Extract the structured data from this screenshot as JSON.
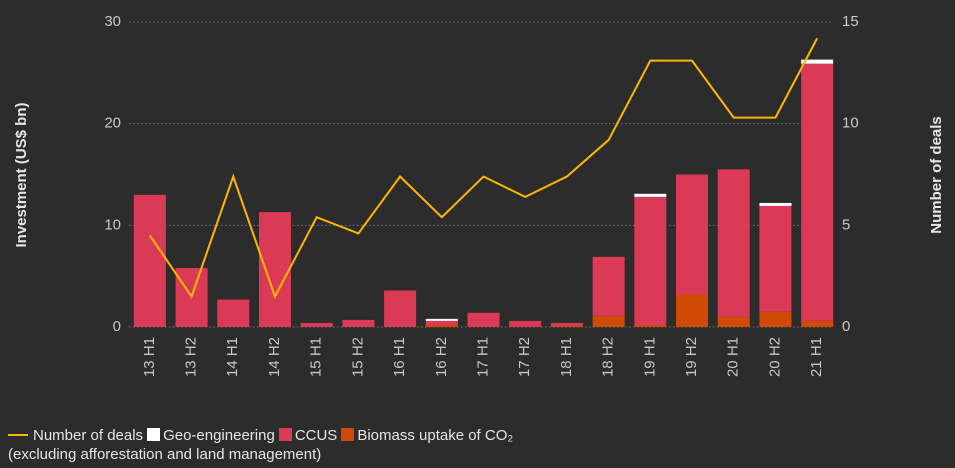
{
  "chart_data": {
    "type": "bar",
    "categories": [
      "13 H1",
      "13 H2",
      "14 H1",
      "14 H2",
      "15 H1",
      "15 H2",
      "16 H1",
      "16 H2",
      "17 H1",
      "17 H2",
      "18 H1",
      "18 H2",
      "19 H1",
      "19 H2",
      "20 H1",
      "20 H2",
      "21 H1"
    ],
    "series": [
      {
        "name": "Number of deals",
        "type": "line",
        "axis": "y2",
        "color": "#ffb600",
        "values": [
          4.5,
          1.5,
          7.4,
          1.5,
          5.4,
          4.6,
          7.4,
          5.4,
          7.4,
          6.4,
          7.4,
          9.2,
          13.1,
          13.1,
          10.3,
          10.3,
          14.2
        ]
      },
      {
        "name": "Geo-engineering",
        "color": "#ffffff",
        "values": [
          0,
          0,
          0,
          0,
          0,
          0,
          0,
          0.2,
          0,
          0,
          0,
          0,
          0.3,
          0,
          0,
          0.3,
          0.4
        ]
      },
      {
        "name": "CCUS",
        "color": "#db3a56",
        "values": [
          13,
          5.8,
          2.7,
          11.3,
          0.4,
          0.7,
          3.6,
          0.4,
          1.4,
          0.6,
          0.3,
          5.8,
          12.6,
          11.8,
          14.5,
          10.4,
          25.3
        ]
      },
      {
        "name": "Biomass uptake of CO₂",
        "color": "#d04a02",
        "values": [
          0,
          0,
          0,
          0,
          0,
          0,
          0,
          0.2,
          0,
          0,
          0.1,
          1.1,
          0.2,
          3.2,
          1.0,
          1.5,
          0.6
        ]
      }
    ],
    "legend_note": "(excluding afforestation and land management)",
    "ylabel": "Investment (US$ bn)",
    "y2label": "Number of deals",
    "ylim": [
      0,
      30
    ],
    "yticks": [
      0,
      10,
      20,
      30
    ],
    "y2lim": [
      0,
      15
    ],
    "y2ticks": [
      0,
      5,
      10,
      15
    ],
    "grid": true
  }
}
